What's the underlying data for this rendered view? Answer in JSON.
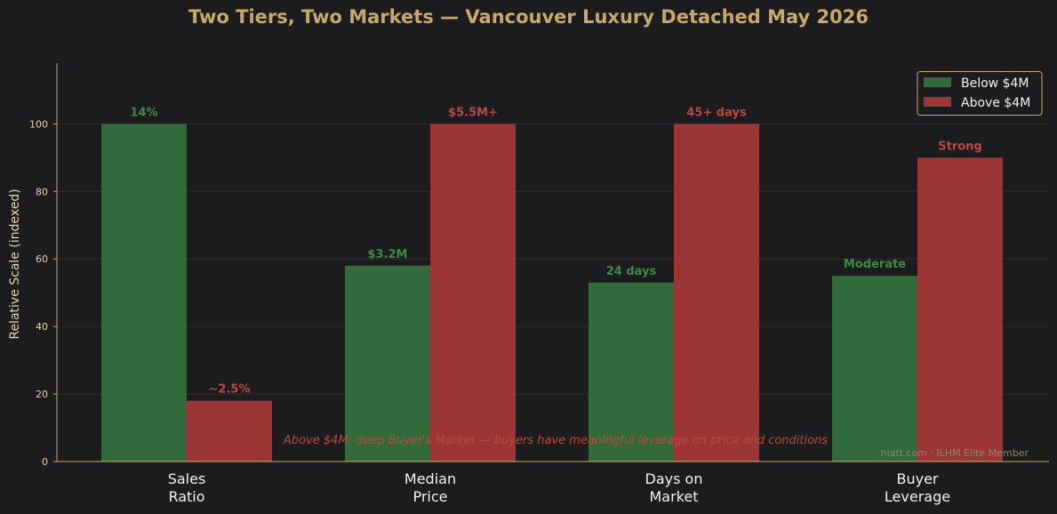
{
  "chart_data": {
    "type": "bar",
    "title": "Two Tiers, Two Markets — Vancouver Luxury Detached May 2026",
    "ylabel": "Relative Scale (indexed)",
    "xlabel": "",
    "ylim": [
      0,
      118
    ],
    "yticks": [
      0,
      20,
      40,
      60,
      80,
      100
    ],
    "categories": [
      [
        "Sales",
        "Ratio"
      ],
      [
        "Median",
        "Price"
      ],
      [
        "Days on",
        "Market"
      ],
      [
        "Buyer",
        "Leverage"
      ]
    ],
    "series": [
      {
        "name": "Below $4M",
        "color": "#336a3b",
        "label_color": "#3e8a4a",
        "values": [
          100,
          58,
          53,
          55
        ],
        "labels": [
          "14%",
          "$3.2M",
          "24 days",
          "Moderate"
        ]
      },
      {
        "name": "Above $4M",
        "color": "#9c3535",
        "label_color": "#b84a45",
        "values": [
          18,
          100,
          100,
          90
        ],
        "labels": [
          "~2.5%",
          "$5.5M+",
          "45+ days",
          "Strong"
        ]
      }
    ],
    "grid": true,
    "legend_position": "top-right",
    "annotation": "Above $4M: deep Buyer's Market — buyers have meaningful leverage on price and conditions",
    "annotation_color": "#b84a45",
    "watermark": "hiatt.com  ·  ILHM Elite Member",
    "background": "#1c1c1e",
    "axis_color": "#c8a86a"
  }
}
